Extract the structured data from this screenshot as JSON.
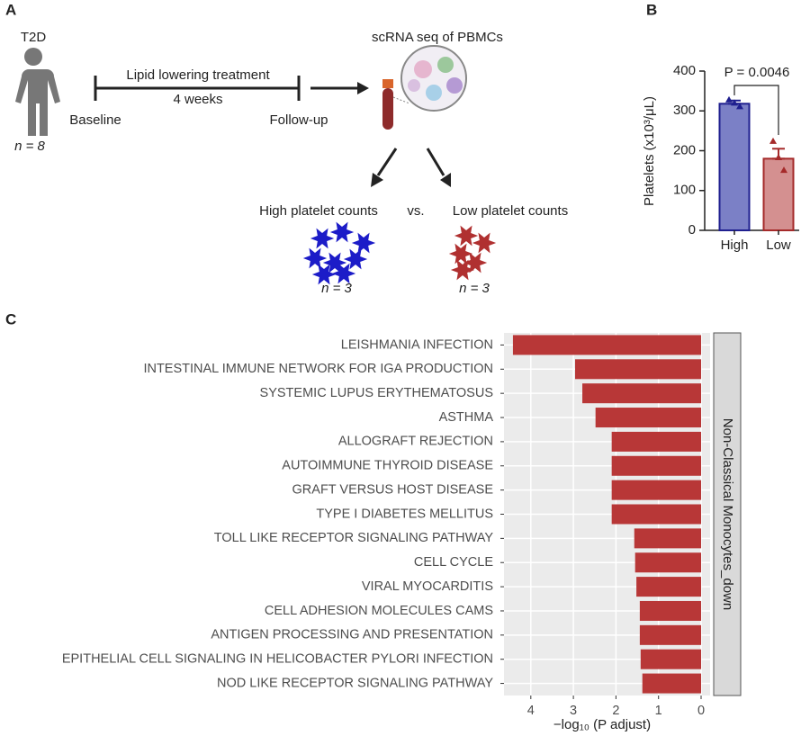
{
  "diagram": {
    "panel": "A",
    "subject": "T2D",
    "subject_n": "n = 8",
    "treatment": "Lipid lowering treatment",
    "duration": "4 weeks",
    "start": "Baseline",
    "end": "Follow-up",
    "assay": "scRNA seq of PBMCs",
    "group_high": "High platelet counts",
    "versus": "vs.",
    "group_low": "Low platelet counts",
    "high_n": "n = 3",
    "low_n": "n = 3"
  },
  "chart_data": [
    {
      "type": "bar",
      "panel": "B",
      "categories": [
        "High",
        "Low"
      ],
      "values": [
        318,
        180
      ],
      "errors": [
        8,
        25
      ],
      "points": [
        [
          328,
          320,
          311
        ],
        [
          224,
          183,
          151
        ]
      ],
      "colors": [
        "#7b80c6",
        "#d49090"
      ],
      "edge_colors": [
        "#1f1f8f",
        "#a52a2a"
      ],
      "ylabel": "Platelets (x10³/μL)",
      "ylim": [
        0,
        400
      ],
      "yticks": [
        0,
        100,
        200,
        300,
        400
      ],
      "annotation": "P = 0.0046"
    },
    {
      "type": "hbar",
      "panel": "C",
      "categories": [
        "LEISHMANIA INFECTION",
        "INTESTINAL IMMUNE NETWORK FOR IGA PRODUCTION",
        "SYSTEMIC LUPUS ERYTHEMATOSUS",
        "ASTHMA",
        "ALLOGRAFT REJECTION",
        "AUTOIMMUNE THYROID DISEASE",
        "GRAFT VERSUS HOST DISEASE",
        "TYPE I DIABETES MELLITUS",
        "TOLL LIKE RECEPTOR SIGNALING PATHWAY",
        "CELL CYCLE",
        "VIRAL MYOCARDITIS",
        "CELL ADHESION MOLECULES CAMS",
        "ANTIGEN PROCESSING AND PRESENTATION",
        "EPITHELIAL CELL SIGNALING IN HELICOBACTER PYLORI INFECTION",
        "NOD LIKE RECEPTOR SIGNALING PATHWAY"
      ],
      "values": [
        4.42,
        2.96,
        2.79,
        2.48,
        2.1,
        2.1,
        2.1,
        2.1,
        1.57,
        1.55,
        1.52,
        1.44,
        1.44,
        1.42,
        1.38
      ],
      "color": "#b83737",
      "xlabel": "−log₁₀ (P adjust)",
      "xlim": [
        4.63,
        0
      ],
      "xticks": [
        4,
        3,
        2,
        1,
        0
      ],
      "facet": "Non-Classical Monocytes_down",
      "grid": true
    }
  ]
}
